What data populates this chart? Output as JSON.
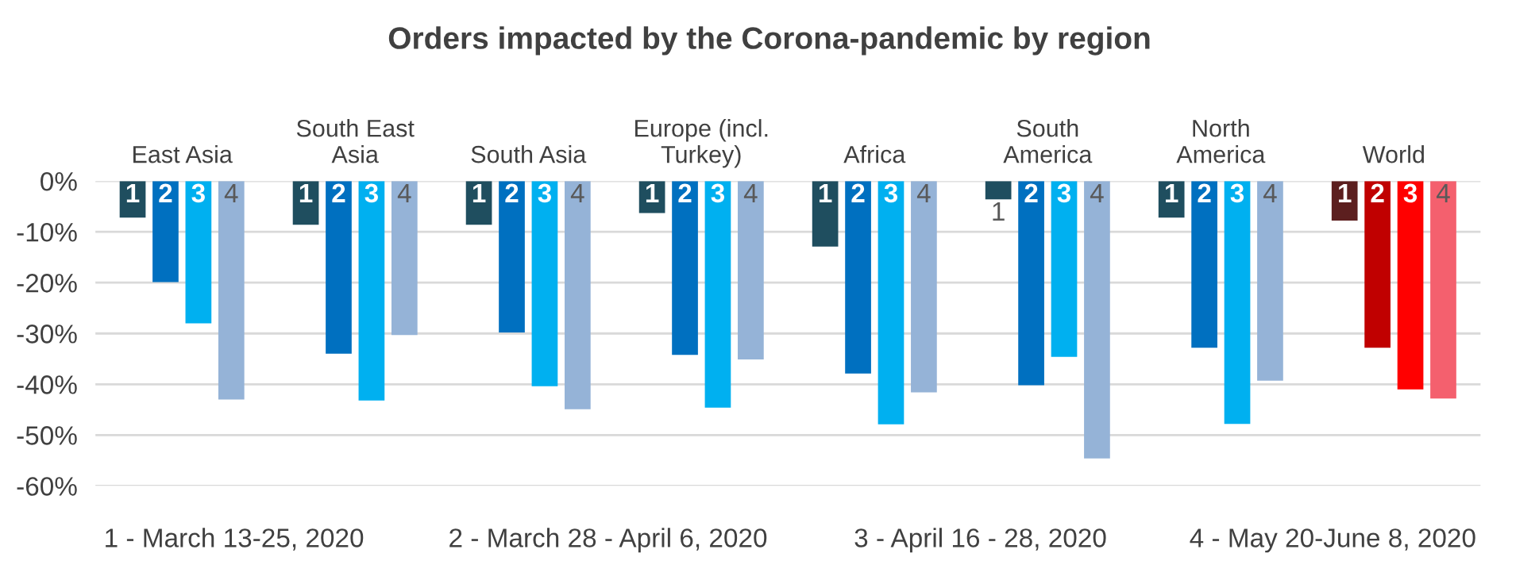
{
  "chart_data": {
    "type": "bar",
    "title": "Orders impacted by the Corona-pandemic by region",
    "categories": [
      "East Asia",
      "South East\nAsia",
      "South Asia",
      "Europe (incl.\nTurkey)",
      "Africa",
      "South\nAmerica",
      "North\nAmerica",
      "World"
    ],
    "series": [
      {
        "name": "1",
        "colors": [
          "#1f4e5f",
          "#1f4e5f",
          "#1f4e5f",
          "#1f4e5f",
          "#1f4e5f",
          "#1f4e5f",
          "#1f4e5f",
          "#5c1f1f"
        ],
        "values": [
          -7.2,
          -8.6,
          -8.6,
          -6.3,
          -12.9,
          -3.6,
          -7.2,
          -7.8
        ]
      },
      {
        "name": "2",
        "colors": [
          "#0070c0",
          "#0070c0",
          "#0070c0",
          "#0070c0",
          "#0070c0",
          "#0070c0",
          "#0070c0",
          "#c00000"
        ],
        "values": [
          -19.9,
          -34,
          -29.8,
          -34.2,
          -37.9,
          -40.2,
          -32.8,
          -32.8
        ]
      },
      {
        "name": "3",
        "colors": [
          "#00b0f0",
          "#00b0f0",
          "#00b0f0",
          "#00b0f0",
          "#00b0f0",
          "#00b0f0",
          "#00b0f0",
          "#ff0000"
        ],
        "values": [
          -28,
          -43.2,
          -40.4,
          -44.6,
          -47.9,
          -34.6,
          -47.8,
          -41
        ]
      },
      {
        "name": "4",
        "colors": [
          "#95b3d7",
          "#95b3d7",
          "#95b3d7",
          "#95b3d7",
          "#95b3d7",
          "#95b3d7",
          "#95b3d7",
          "#f4606e"
        ],
        "values": [
          -43,
          -30.3,
          -44.9,
          -35.1,
          -41.6,
          -54.6,
          -39.3,
          -42.8
        ]
      }
    ],
    "ylim": [
      -60,
      0
    ],
    "yticks": [
      {
        "value": 0,
        "label": "0%"
      },
      {
        "value": -10,
        "label": "-10%"
      },
      {
        "value": -20,
        "label": "-20%"
      },
      {
        "value": -30,
        "label": "-30%"
      },
      {
        "value": -40,
        "label": "-40%"
      },
      {
        "value": -50,
        "label": "-50%"
      },
      {
        "value": -60,
        "label": "-60%"
      }
    ],
    "grid": "y",
    "annotations": [
      "1 - March 13-25, 2020",
      "2 - March 28 - April 6, 2020",
      "3 - April 16 - 28, 2020",
      "4 - May 20-June 8, 2020"
    ]
  }
}
